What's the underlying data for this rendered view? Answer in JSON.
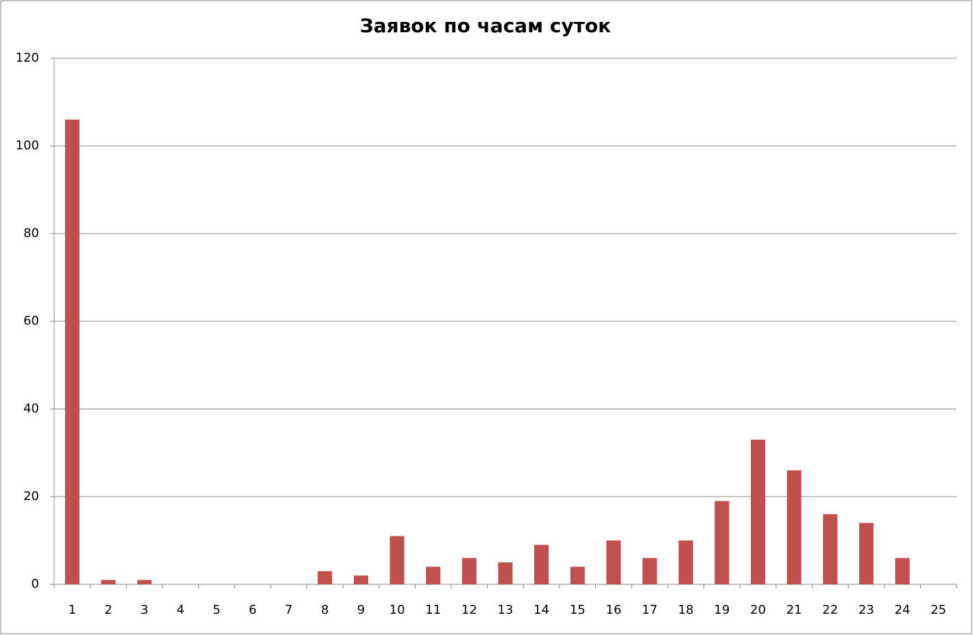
{
  "chart_data": {
    "type": "bar",
    "title": "Заявок по часам суток",
    "categories": [
      "1",
      "2",
      "3",
      "4",
      "5",
      "6",
      "7",
      "8",
      "9",
      "10",
      "11",
      "12",
      "13",
      "14",
      "15",
      "16",
      "17",
      "18",
      "19",
      "20",
      "21",
      "22",
      "23",
      "24",
      "25"
    ],
    "values": [
      106,
      1,
      1,
      0,
      0,
      0,
      0,
      3,
      2,
      11,
      4,
      6,
      5,
      9,
      4,
      10,
      6,
      10,
      19,
      33,
      26,
      16,
      14,
      6,
      0
    ],
    "color": "#c0504d",
    "ylim": [
      0,
      120
    ],
    "yticks": [
      0,
      20,
      40,
      60,
      80,
      100,
      120
    ],
    "grid": true
  }
}
